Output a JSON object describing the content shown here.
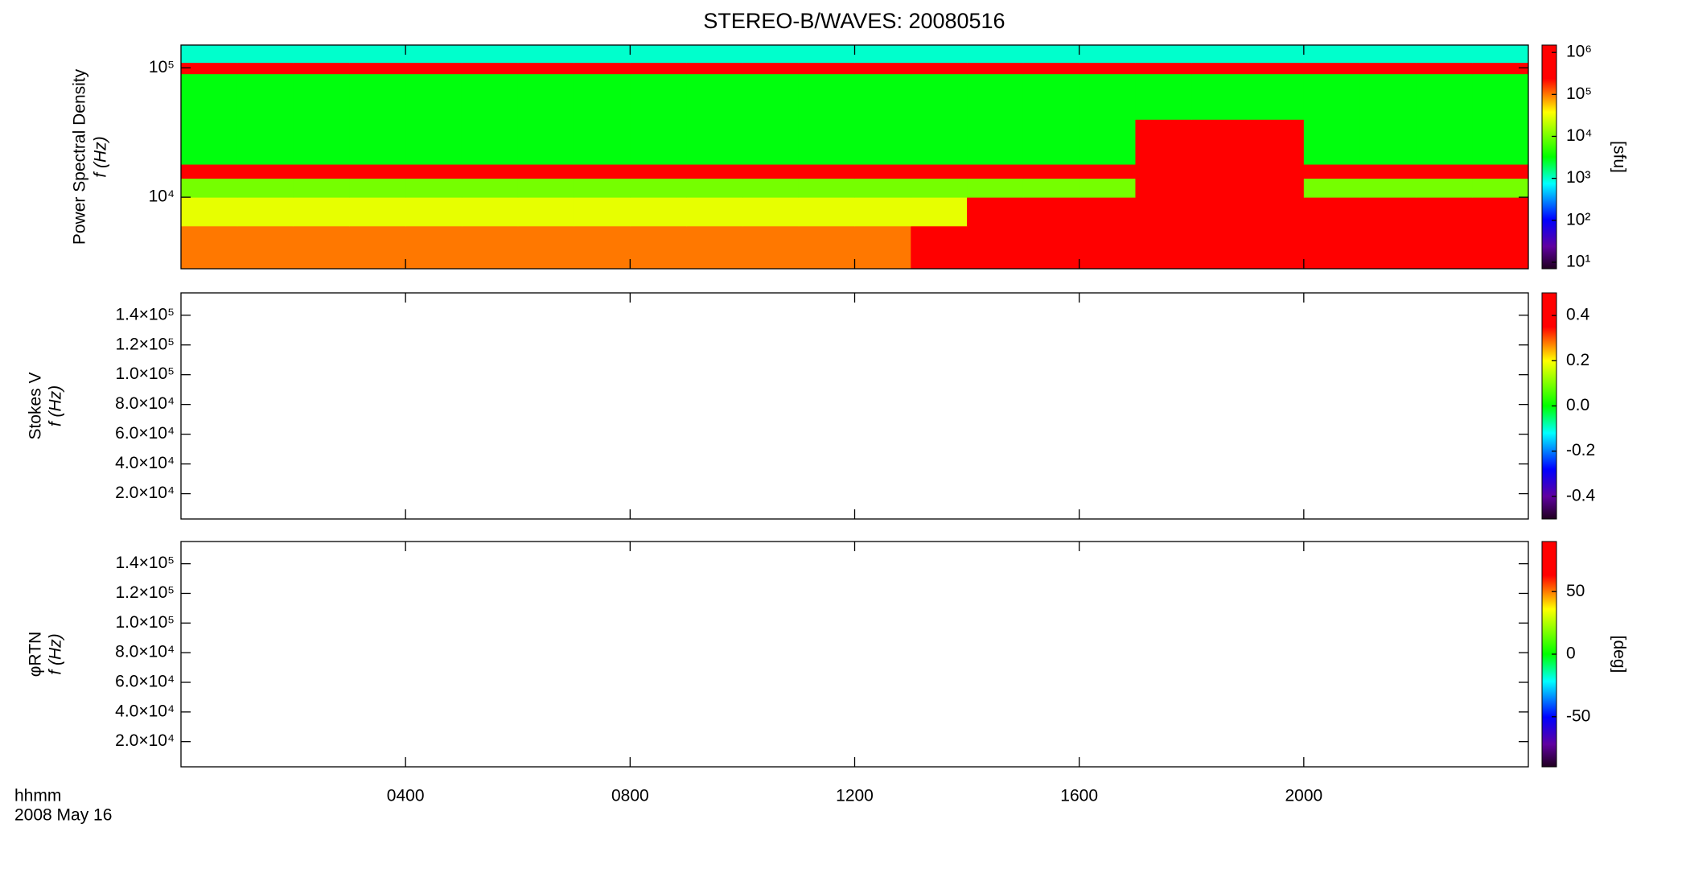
{
  "chart_data": [
    {
      "type": "heatmap",
      "title": "STEREO-B/WAVES: 20080516",
      "ylabel": "Power Spectral Density",
      "ylabel2": "f (Hz)",
      "xlim": [
        0,
        24
      ],
      "ylim": [
        2800,
        150000
      ],
      "log_y": true,
      "yticks": [
        {
          "value": 10000,
          "label": "10⁴"
        },
        {
          "value": 100000,
          "label": "10⁵"
        }
      ],
      "time_edges": [
        0,
        1,
        2,
        3,
        4,
        5,
        6,
        7,
        8,
        9,
        10,
        11,
        12,
        13,
        14,
        15,
        16,
        17,
        18,
        19,
        20,
        21,
        22,
        23,
        24
      ],
      "freq_edges": [
        2800,
        6000,
        10000,
        14000,
        18000,
        40000,
        90000,
        110000,
        150000
      ],
      "z": [
        [
          100000,
          100000,
          100000,
          100000,
          100000,
          100000,
          100000,
          100000,
          100000,
          100000,
          100000,
          100000,
          100000,
          300000,
          1000000,
          1000000,
          1000000,
          1000000,
          1000000,
          1000000,
          1000000,
          1000000,
          1000000,
          1000000
        ],
        [
          30000,
          30000,
          30000,
          30000,
          30000,
          30000,
          30000,
          30000,
          30000,
          30000,
          30000,
          30000,
          30000,
          30000,
          1000000,
          1000000,
          1000000,
          1000000,
          1000000,
          1000000,
          1000000,
          1000000,
          1000000,
          1000000
        ],
        [
          10000,
          10000,
          10000,
          10000,
          10000,
          10000,
          10000,
          10000,
          10000,
          10000,
          10000,
          10000,
          10000,
          10000,
          10000,
          10000,
          10000,
          1000000,
          1000000,
          300000,
          10000,
          10000,
          10000,
          10000
        ],
        [
          300000,
          300000,
          300000,
          300000,
          300000,
          300000,
          300000,
          300000,
          300000,
          300000,
          300000,
          300000,
          300000,
          300000,
          300000,
          300000,
          300000,
          300000,
          300000,
          300000,
          300000,
          300000,
          300000,
          300000
        ],
        [
          3000,
          3000,
          3000,
          3000,
          3000,
          3000,
          3000,
          3000,
          3000,
          3000,
          3000,
          3000,
          3000,
          3000,
          3000,
          3000,
          3000,
          1000000,
          1000000,
          300000,
          3000,
          3000,
          3000,
          3000
        ],
        [
          3000,
          3000,
          3000,
          3000,
          3000,
          3000,
          3000,
          3000,
          3000,
          3000,
          3000,
          3000,
          3000,
          3000,
          3000,
          3000,
          3000,
          3000,
          3000,
          3000,
          3000,
          3000,
          3000,
          3000
        ],
        [
          300000,
          300000,
          300000,
          300000,
          300000,
          300000,
          300000,
          300000,
          300000,
          300000,
          300000,
          300000,
          300000,
          300000,
          300000,
          300000,
          300000,
          300000,
          300000,
          300000,
          300000,
          300000,
          300000,
          300000
        ],
        [
          1000,
          1000,
          1000,
          1000,
          1000,
          1000,
          1000,
          1000,
          1000,
          1000,
          1000,
          1000,
          1000,
          1000,
          1000,
          1000,
          1000,
          1000,
          1000,
          1000,
          1000,
          1000,
          1000,
          1000
        ]
      ],
      "colorbar": {
        "label": "[sfu]",
        "log": true,
        "lim": [
          7,
          1500000
        ],
        "ticks": [
          {
            "value": 10,
            "label": "10¹"
          },
          {
            "value": 100,
            "label": "10²"
          },
          {
            "value": 1000,
            "label": "10³"
          },
          {
            "value": 10000,
            "label": "10⁴"
          },
          {
            "value": 100000,
            "label": "10⁵"
          },
          {
            "value": 1000000,
            "label": "10⁶"
          }
        ]
      }
    },
    {
      "type": "heatmap",
      "ylabel": "Stokes V",
      "ylabel2": "f (Hz)",
      "xlim": [
        0,
        24
      ],
      "ylim": [
        3000,
        155000
      ],
      "yticks": [
        {
          "value": 20000,
          "label": "2.0×10⁴"
        },
        {
          "value": 40000,
          "label": "4.0×10⁴"
        },
        {
          "value": 60000,
          "label": "6.0×10⁴"
        },
        {
          "value": 80000,
          "label": "8.0×10⁴"
        },
        {
          "value": 100000,
          "label": "1.0×10⁵"
        },
        {
          "value": 120000,
          "label": "1.2×10⁵"
        },
        {
          "value": 140000,
          "label": "1.4×10⁵"
        }
      ],
      "colorbar": {
        "lim": [
          -0.5,
          0.5
        ],
        "ticks": [
          -0.4,
          -0.2,
          {
            "value": 0,
            "label": "0.0"
          },
          0.2,
          0.4
        ]
      }
    },
    {
      "type": "heatmap",
      "ylabel": "φRTN",
      "ylabel2": "f (Hz)",
      "xlim": [
        0,
        24
      ],
      "ylim": [
        3000,
        155000
      ],
      "yticks": [
        {
          "value": 20000,
          "label": "2.0×10⁴"
        },
        {
          "value": 40000,
          "label": "4.0×10⁴"
        },
        {
          "value": 60000,
          "label": "6.0×10⁴"
        },
        {
          "value": 80000,
          "label": "8.0×10⁴"
        },
        {
          "value": 100000,
          "label": "1.0×10⁵"
        },
        {
          "value": 120000,
          "label": "1.2×10⁵"
        },
        {
          "value": 140000,
          "label": "1.4×10⁵"
        }
      ],
      "colorbar": {
        "label": "[deg]",
        "lim": [
          -90,
          90
        ],
        "ticks": [
          -50,
          0,
          50
        ]
      },
      "xlabel": "hhmm",
      "xlabel_date": "2008 May 16",
      "xticks": [
        {
          "value": 4,
          "label": "0400"
        },
        {
          "value": 8,
          "label": "0800"
        },
        {
          "value": 12,
          "label": "1200"
        },
        {
          "value": 16,
          "label": "1600"
        },
        {
          "value": 20,
          "label": "2000"
        }
      ]
    }
  ]
}
